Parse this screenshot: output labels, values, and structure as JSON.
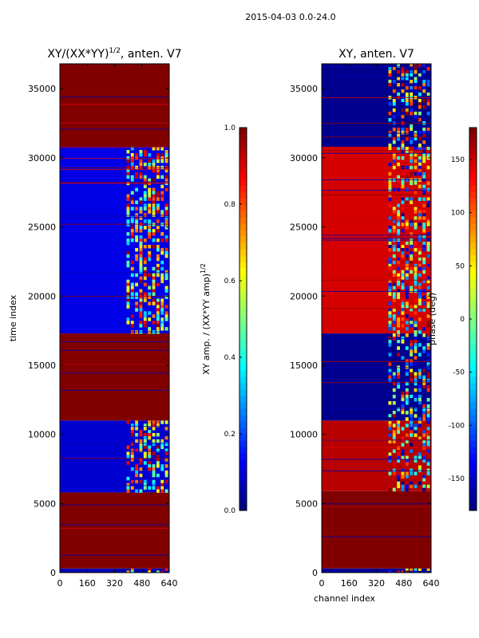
{
  "figure": {
    "suptitle": "2015-04-03 0.0-24.0"
  },
  "chart_data": [
    {
      "type": "heatmap",
      "title": "XY/(XX*YY)",
      "title_exponent": "1/2",
      "title_suffix": ", anten. V7",
      "xlabel": "",
      "ylabel": "time index",
      "xlim": [
        0,
        640
      ],
      "ylim": [
        0,
        36800
      ],
      "x_ticks": [
        0,
        160,
        320,
        480,
        640
      ],
      "y_ticks": [
        0,
        5000,
        10000,
        15000,
        20000,
        25000,
        30000,
        35000
      ],
      "colorscale": "jet",
      "colorbar": {
        "label": "XY amp. / (XX*YY amp)",
        "label_exponent": "1/2",
        "range": [
          0.0,
          1.0
        ],
        "ticks": [
          "0.0",
          "0.2",
          "0.4",
          "0.6",
          "0.8",
          "1.0"
        ]
      },
      "bands": [
        {
          "y0": 0,
          "y1": 300,
          "v": 0.05,
          "active": 0.5
        },
        {
          "y0": 300,
          "y1": 5800,
          "v": 1.0,
          "active": 1.0
        },
        {
          "y0": 5800,
          "y1": 11000,
          "v": 0.08,
          "active": 0.8
        },
        {
          "y0": 11000,
          "y1": 17300,
          "v": 1.0,
          "active": 1.0
        },
        {
          "y0": 17300,
          "y1": 30800,
          "v": 0.1,
          "active": 0.85
        },
        {
          "y0": 30800,
          "y1": 36800,
          "v": 1.0,
          "active": 1.0
        }
      ]
    },
    {
      "type": "heatmap",
      "title": "XY, anten. V7",
      "xlabel": "channel index",
      "ylabel": "",
      "xlim": [
        0,
        640
      ],
      "ylim": [
        0,
        36800
      ],
      "x_ticks": [
        0,
        160,
        320,
        480,
        640
      ],
      "y_ticks": [
        0,
        5000,
        10000,
        15000,
        20000,
        25000,
        30000,
        35000
      ],
      "colorscale": "jet",
      "colorbar": {
        "label": "phase (deg)",
        "range": [
          -180,
          180
        ],
        "ticks": [
          "-150",
          "-100",
          "-50",
          "0",
          "50",
          "100",
          "150"
        ]
      },
      "bands": [
        {
          "y0": 0,
          "y1": 300,
          "v": -170,
          "active": 0.5
        },
        {
          "y0": 300,
          "y1": 5900,
          "v": 180,
          "active": 1.0
        },
        {
          "y0": 5900,
          "y1": 11000,
          "v": 160,
          "active": 0.85
        },
        {
          "y0": 11000,
          "y1": 17300,
          "v": -175,
          "active": 0.3
        },
        {
          "y0": 17300,
          "y1": 30800,
          "v": 150,
          "active": 0.85
        },
        {
          "y0": 30800,
          "y1": 36800,
          "v": -175,
          "active": 0.5
        }
      ]
    }
  ]
}
